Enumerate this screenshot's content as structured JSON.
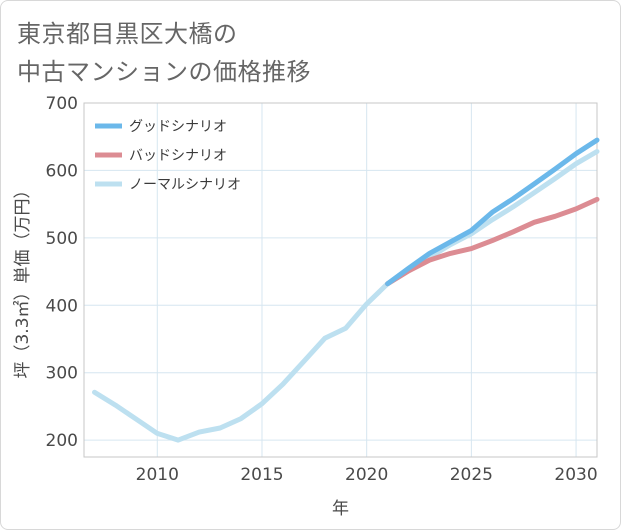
{
  "title_line1": "東京都目黒区大橋の",
  "title_line2": "中古マンションの価格推移",
  "chart_data": {
    "type": "line",
    "xlabel": "年",
    "ylabel": "坪（3.3㎡）単価（万円）",
    "xlim": [
      2006.5,
      2031
    ],
    "ylim": [
      175,
      700
    ],
    "x_ticks": [
      2010,
      2015,
      2020,
      2025,
      2030
    ],
    "y_ticks": [
      200,
      300,
      400,
      500,
      600,
      700
    ],
    "grid": true,
    "legend_position": "top-left",
    "series": [
      {
        "name": "グッドシナリオ",
        "color": "#6bb8ea",
        "x": [
          2021,
          2022,
          2023,
          2024,
          2025,
          2026,
          2027,
          2028,
          2029,
          2030,
          2031
        ],
        "y": [
          432,
          455,
          477,
          494,
          511,
          538,
          558,
          580,
          602,
          625,
          645
        ]
      },
      {
        "name": "バッドシナリオ",
        "color": "#dc8c93",
        "x": [
          2021,
          2022,
          2023,
          2024,
          2025,
          2026,
          2027,
          2028,
          2029,
          2030,
          2031
        ],
        "y": [
          432,
          451,
          467,
          477,
          484,
          496,
          509,
          523,
          532,
          543,
          557
        ]
      },
      {
        "name": "ノーマルシナリオ",
        "color": "#bde0f0",
        "x": [
          2007,
          2008,
          2009,
          2010,
          2011,
          2012,
          2013,
          2014,
          2015,
          2016,
          2017,
          2018,
          2019,
          2020,
          2021,
          2022,
          2023,
          2024,
          2025,
          2026,
          2027,
          2028,
          2029,
          2030,
          2031
        ],
        "y": [
          271,
          252,
          231,
          210,
          200,
          212,
          218,
          232,
          254,
          283,
          317,
          351,
          366,
          402,
          432,
          451,
          471,
          490,
          506,
          527,
          546,
          567,
          588,
          610,
          628
        ]
      }
    ]
  }
}
